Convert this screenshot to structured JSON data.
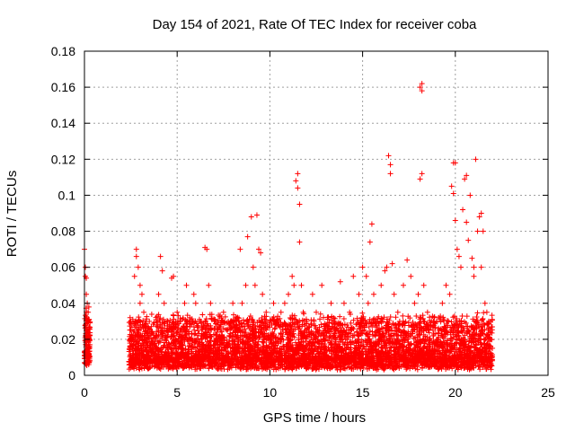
{
  "chart_data": {
    "type": "scatter",
    "title": "Day 154 of 2021, Rate Of TEC Index for receiver coba",
    "xlabel": "GPS time / hours",
    "ylabel": "ROTI / TECUs",
    "xlim": [
      0,
      25
    ],
    "ylim": [
      0,
      0.18
    ],
    "xticks": [
      0,
      5,
      10,
      15,
      20,
      25
    ],
    "yticks": [
      0,
      0.02,
      0.04,
      0.06,
      0.08,
      0.1,
      0.12,
      0.14,
      0.16,
      0.18
    ],
    "xtick_labels": [
      "0",
      "5",
      "10",
      "15",
      "20",
      "25"
    ],
    "ytick_labels": [
      "0",
      "0.02",
      "0.04",
      "0.06",
      "0.08",
      "0.1",
      "0.12",
      "0.14",
      "0.16",
      "0.18"
    ],
    "grid": true,
    "marker": "+",
    "color": "#ff0000",
    "series": [
      {
        "points": [
          [
            0.0,
            0.07
          ],
          [
            0.05,
            0.06
          ],
          [
            0.05,
            0.055
          ],
          [
            0.1,
            0.054
          ],
          [
            0.1,
            0.045
          ],
          [
            0.15,
            0.04
          ],
          [
            0.2,
            0.035
          ],
          [
            0.2,
            0.03
          ],
          [
            0.1,
            0.025
          ],
          [
            0.15,
            0.02
          ],
          [
            0.2,
            0.015
          ],
          [
            0.25,
            0.012
          ],
          [
            0.1,
            0.01
          ],
          [
            0.2,
            0.008
          ],
          [
            0.25,
            0.02
          ],
          [
            0.05,
            0.028
          ],
          [
            2.5,
            0.03
          ],
          [
            2.6,
            0.02
          ],
          [
            2.7,
            0.055
          ],
          [
            2.8,
            0.066
          ],
          [
            2.8,
            0.07
          ],
          [
            2.9,
            0.06
          ],
          [
            3.0,
            0.05
          ],
          [
            3.1,
            0.045
          ],
          [
            3.0,
            0.04
          ],
          [
            3.2,
            0.035
          ],
          [
            2.6,
            0.012
          ],
          [
            3.3,
            0.025
          ],
          [
            3.5,
            0.03
          ],
          [
            3.7,
            0.02
          ],
          [
            3.9,
            0.015
          ],
          [
            4.0,
            0.045
          ],
          [
            4.1,
            0.066
          ],
          [
            4.2,
            0.058
          ],
          [
            4.3,
            0.04
          ],
          [
            4.5,
            0.03
          ],
          [
            4.7,
            0.054
          ],
          [
            4.8,
            0.055
          ],
          [
            5.0,
            0.035
          ],
          [
            5.2,
            0.025
          ],
          [
            5.4,
            0.04
          ],
          [
            5.5,
            0.05
          ],
          [
            5.7,
            0.03
          ],
          [
            5.9,
            0.045
          ],
          [
            6.0,
            0.04
          ],
          [
            6.2,
            0.03
          ],
          [
            6.3,
            0.02
          ],
          [
            6.5,
            0.071
          ],
          [
            6.6,
            0.07
          ],
          [
            6.7,
            0.05
          ],
          [
            6.8,
            0.04
          ],
          [
            7.0,
            0.03
          ],
          [
            7.2,
            0.02
          ],
          [
            7.5,
            0.035
          ],
          [
            7.7,
            0.025
          ],
          [
            8.0,
            0.04
          ],
          [
            8.2,
            0.03
          ],
          [
            8.4,
            0.07
          ],
          [
            8.5,
            0.04
          ],
          [
            8.7,
            0.05
          ],
          [
            8.8,
            0.077
          ],
          [
            9.0,
            0.088
          ],
          [
            9.1,
            0.06
          ],
          [
            9.2,
            0.05
          ],
          [
            9.3,
            0.089
          ],
          [
            9.4,
            0.07
          ],
          [
            9.5,
            0.068
          ],
          [
            9.6,
            0.045
          ],
          [
            9.8,
            0.035
          ],
          [
            10.0,
            0.03
          ],
          [
            10.2,
            0.04
          ],
          [
            10.4,
            0.03
          ],
          [
            10.6,
            0.035
          ],
          [
            10.8,
            0.04
          ],
          [
            11.0,
            0.045
          ],
          [
            11.2,
            0.055
          ],
          [
            11.3,
            0.05
          ],
          [
            11.4,
            0.108
          ],
          [
            11.5,
            0.112
          ],
          [
            11.5,
            0.104
          ],
          [
            11.6,
            0.095
          ],
          [
            11.6,
            0.074
          ],
          [
            11.7,
            0.05
          ],
          [
            11.8,
            0.035
          ],
          [
            12.0,
            0.03
          ],
          [
            12.3,
            0.045
          ],
          [
            12.5,
            0.035
          ],
          [
            12.8,
            0.05
          ],
          [
            13.0,
            0.025
          ],
          [
            13.3,
            0.04
          ],
          [
            13.5,
            0.03
          ],
          [
            13.8,
            0.052
          ],
          [
            14.0,
            0.04
          ],
          [
            14.3,
            0.035
          ],
          [
            14.5,
            0.055
          ],
          [
            14.8,
            0.045
          ],
          [
            15.0,
            0.06
          ],
          [
            15.2,
            0.055
          ],
          [
            15.3,
            0.04
          ],
          [
            15.4,
            0.074
          ],
          [
            15.5,
            0.084
          ],
          [
            15.6,
            0.045
          ],
          [
            15.8,
            0.03
          ],
          [
            16.0,
            0.05
          ],
          [
            16.2,
            0.058
          ],
          [
            16.3,
            0.06
          ],
          [
            16.4,
            0.122
          ],
          [
            16.5,
            0.117
          ],
          [
            16.5,
            0.112
          ],
          [
            16.6,
            0.062
          ],
          [
            16.7,
            0.045
          ],
          [
            16.9,
            0.035
          ],
          [
            17.0,
            0.03
          ],
          [
            17.2,
            0.05
          ],
          [
            17.4,
            0.064
          ],
          [
            17.6,
            0.055
          ],
          [
            17.8,
            0.04
          ],
          [
            18.0,
            0.045
          ],
          [
            18.1,
            0.109
          ],
          [
            18.2,
            0.112
          ],
          [
            18.1,
            0.16
          ],
          [
            18.2,
            0.162
          ],
          [
            18.2,
            0.158
          ],
          [
            18.3,
            0.05
          ],
          [
            18.5,
            0.035
          ],
          [
            18.8,
            0.025
          ],
          [
            19.0,
            0.03
          ],
          [
            19.3,
            0.04
          ],
          [
            19.5,
            0.05
          ],
          [
            19.7,
            0.045
          ],
          [
            19.8,
            0.105
          ],
          [
            19.9,
            0.101
          ],
          [
            19.9,
            0.118
          ],
          [
            20.0,
            0.118
          ],
          [
            20.0,
            0.086
          ],
          [
            20.1,
            0.07
          ],
          [
            20.2,
            0.066
          ],
          [
            20.3,
            0.06
          ],
          [
            20.4,
            0.092
          ],
          [
            20.5,
            0.109
          ],
          [
            20.6,
            0.111
          ],
          [
            20.6,
            0.085
          ],
          [
            20.7,
            0.075
          ],
          [
            20.8,
            0.1
          ],
          [
            20.9,
            0.065
          ],
          [
            21.0,
            0.06
          ],
          [
            21.0,
            0.055
          ],
          [
            21.1,
            0.12
          ],
          [
            21.2,
            0.08
          ],
          [
            21.3,
            0.088
          ],
          [
            21.4,
            0.09
          ],
          [
            21.4,
            0.06
          ],
          [
            21.5,
            0.08
          ],
          [
            21.6,
            0.04
          ],
          [
            21.7,
            0.035
          ],
          [
            21.8,
            0.03
          ],
          [
            21.9,
            0.02
          ],
          [
            22.0,
            0.015
          ]
        ]
      }
    ],
    "dense_band": [
      {
        "x": [
          0.0,
          0.3
        ],
        "y": [
          0.005,
          0.042
        ]
      },
      {
        "x": [
          2.4,
          22.0
        ],
        "y": [
          0.003,
          0.035
        ]
      }
    ]
  }
}
